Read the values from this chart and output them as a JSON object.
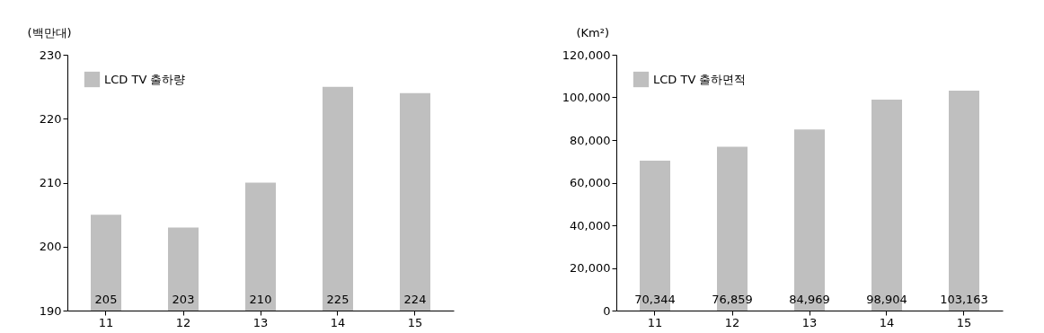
{
  "chart_data": [
    {
      "type": "bar",
      "ylabel": "(백만대)",
      "categories": [
        "11",
        "12",
        "13",
        "14",
        "15"
      ],
      "series": [
        {
          "name": "LCD TV 출하량",
          "color": "#bfbfbf",
          "values": [
            205,
            203,
            210,
            225,
            224
          ]
        }
      ],
      "ylim": [
        190,
        230
      ],
      "yticks": [
        190,
        200,
        210,
        220,
        230
      ],
      "data_labels": true,
      "legend": "top left",
      "grid": false
    },
    {
      "type": "bar",
      "ylabel": "(Km²)",
      "categories": [
        "11",
        "12",
        "13",
        "14",
        "15"
      ],
      "series": [
        {
          "name": "LCD TV 출하면적",
          "color": "#bfbfbf",
          "values": [
            70344,
            76859,
            84969,
            98904,
            103163
          ],
          "value_labels": [
            "70,344",
            "76,859",
            "84,969",
            "98,904",
            "103,163"
          ]
        }
      ],
      "ylim": [
        0,
        120000
      ],
      "yticks": [
        0,
        {
          "value": 20000,
          "label": "20,000"
        },
        {
          "value": 40000,
          "label": "40,000"
        },
        {
          "value": 60000,
          "label": "60,000"
        },
        {
          "value": 80000,
          "label": "80,000"
        },
        {
          "value": 100000,
          "label": "100,000"
        },
        {
          "value": 120000,
          "label": "120,000"
        }
      ],
      "legend": "top left",
      "grid": false
    }
  ]
}
